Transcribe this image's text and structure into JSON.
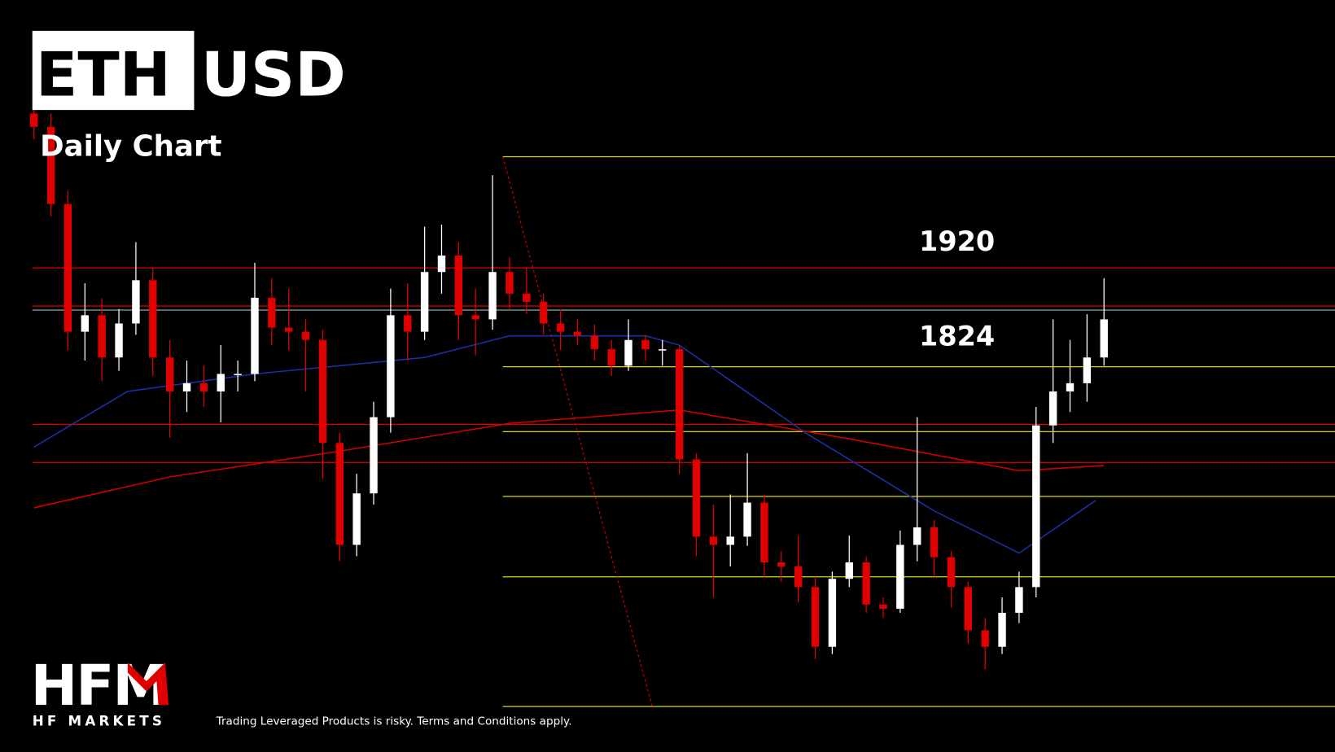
{
  "header": {
    "ticker_base": "ETH",
    "ticker_quote": "USD",
    "subtitle": "Daily Chart"
  },
  "chart_data": {
    "type": "candlestick",
    "xlim": [
      -2,
      76.6
    ],
    "ylim": [
      1450,
      2180
    ],
    "colors": {
      "up": "#ffffff",
      "down": "#e00000"
    },
    "open": [
      2070,
      2057,
      1982,
      1858,
      1874,
      1833,
      1866,
      1908,
      1833,
      1800,
      1808,
      1800,
      1817,
      1817,
      1891,
      1862,
      1858,
      1850,
      1750,
      1651,
      1701,
      1775,
      1874,
      1858,
      1916,
      1932,
      1874,
      1870,
      1916,
      1895,
      1887,
      1866,
      1858,
      1854,
      1841,
      1825,
      1850,
      1841,
      1841,
      1734,
      1659,
      1651,
      1659,
      1692,
      1634,
      1630,
      1610,
      1552,
      1618,
      1634,
      1593,
      1589,
      1651,
      1668,
      1639,
      1610,
      1568,
      1552,
      1585,
      1610,
      1767,
      1800,
      1808,
      1833
    ],
    "high": [
      2085,
      2070,
      1995,
      1905,
      1890,
      1880,
      1945,
      1920,
      1850,
      1830,
      1825,
      1845,
      1830,
      1925,
      1910,
      1900,
      1870,
      1860,
      1760,
      1720,
      1790,
      1900,
      1905,
      1960,
      1962,
      1945,
      1900,
      2010,
      1930,
      1920,
      1895,
      1880,
      1870,
      1865,
      1850,
      1870,
      1855,
      1850,
      1845,
      1740,
      1690,
      1700,
      1740,
      1700,
      1645,
      1660,
      1620,
      1625,
      1660,
      1640,
      1600,
      1665,
      1775,
      1675,
      1645,
      1615,
      1580,
      1600,
      1625,
      1785,
      1870,
      1850,
      1875,
      1910
    ],
    "low": [
      2045,
      1970,
      1840,
      1830,
      1810,
      1820,
      1855,
      1815,
      1755,
      1780,
      1785,
      1770,
      1800,
      1810,
      1845,
      1840,
      1800,
      1715,
      1635,
      1640,
      1690,
      1760,
      1830,
      1850,
      1895,
      1850,
      1835,
      1860,
      1880,
      1875,
      1855,
      1840,
      1845,
      1830,
      1815,
      1820,
      1830,
      1825,
      1720,
      1640,
      1600,
      1630,
      1650,
      1620,
      1615,
      1595,
      1540,
      1545,
      1610,
      1585,
      1580,
      1585,
      1635,
      1620,
      1590,
      1555,
      1530,
      1545,
      1575,
      1600,
      1750,
      1780,
      1790,
      1825
    ],
    "close": [
      2057,
      1982,
      1858,
      1874,
      1833,
      1866,
      1908,
      1833,
      1800,
      1808,
      1800,
      1817,
      1817,
      1891,
      1862,
      1858,
      1850,
      1750,
      1651,
      1701,
      1775,
      1874,
      1858,
      1916,
      1932,
      1874,
      1870,
      1916,
      1895,
      1887,
      1866,
      1858,
      1854,
      1841,
      1825,
      1850,
      1841,
      1841,
      1734,
      1659,
      1651,
      1659,
      1692,
      1634,
      1630,
      1610,
      1552,
      1618,
      1634,
      1593,
      1589,
      1651,
      1668,
      1639,
      1610,
      1568,
      1552,
      1585,
      1610,
      1767,
      1800,
      1808,
      1833,
      1870
    ],
    "levels": [
      {
        "value": 1920,
        "color": "#e00000"
      },
      {
        "value": 1883,
        "color": "#e00000"
      },
      {
        "value": 1879,
        "color": "#8fa3b8"
      },
      {
        "value": 1768,
        "color": "#e00000"
      },
      {
        "value": 1731,
        "color": "#e00000"
      }
    ],
    "fib_levels": {
      "values": [
        2028,
        1824,
        1761,
        1698,
        1620,
        1494
      ],
      "color": "#d8d800",
      "start_x": 27.6
    },
    "trendline": {
      "x": [
        27.6,
        36.4
      ],
      "values": [
        2028,
        1494
      ],
      "color": "#e00000"
    },
    "ma_lines": [
      {
        "color": "#d00000",
        "x": [
          0,
          8,
          18,
          28,
          38,
          48,
          58,
          63
        ],
        "values": [
          1687,
          1717,
          1742,
          1769,
          1782,
          1754,
          1723,
          1728
        ]
      },
      {
        "color": "#1c2fa8",
        "x": [
          0,
          5.5,
          13,
          23,
          28,
          36,
          38,
          45.5,
          53,
          58,
          62.5
        ],
        "values": [
          1746,
          1800,
          1817,
          1833,
          1854,
          1854,
          1845,
          1759,
          1684,
          1643,
          1694
        ]
      }
    ],
    "annotations": [
      1920,
      1824
    ]
  },
  "footer": {
    "logo": "HFM",
    "brand": "HF MARKETS",
    "disclaimer": "Trading Leveraged Products is risky. Terms and Conditions apply."
  }
}
